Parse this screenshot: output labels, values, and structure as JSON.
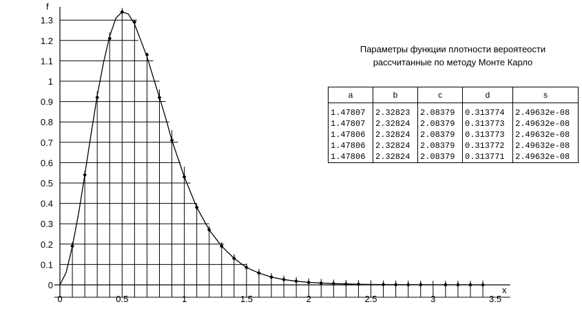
{
  "chart_data": {
    "type": "line",
    "title": "",
    "xlabel": "x",
    "ylabel": "f",
    "xlim": [
      0,
      3.5
    ],
    "ylim": [
      0,
      1.35
    ],
    "x_ticks": [
      "0",
      "0.5",
      "1",
      "1.5",
      "2",
      "2.5",
      "3",
      "3.5"
    ],
    "y_ticks": [
      "0",
      "0.1",
      "0.2",
      "0.3",
      "0.4",
      "0.5",
      "0.6",
      "0.7",
      "0.8",
      "0.9",
      "1",
      "1.1",
      "1.2",
      "1.3"
    ],
    "grid": "partial",
    "curve": {
      "x": [
        0,
        0.05,
        0.1,
        0.15,
        0.2,
        0.25,
        0.3,
        0.35,
        0.4,
        0.45,
        0.5,
        0.55,
        0.6,
        0.65,
        0.7,
        0.75,
        0.8,
        0.85,
        0.9,
        0.95,
        1.0,
        1.1,
        1.2,
        1.3,
        1.4,
        1.5,
        1.6,
        1.7,
        1.8,
        1.9,
        2.0,
        2.2,
        2.4,
        2.6,
        2.8,
        3.0,
        3.2,
        3.4
      ],
      "y": [
        0,
        0.06,
        0.19,
        0.35,
        0.54,
        0.74,
        0.93,
        1.09,
        1.22,
        1.31,
        1.34,
        1.33,
        1.28,
        1.2,
        1.12,
        1.02,
        0.92,
        0.82,
        0.71,
        0.62,
        0.53,
        0.38,
        0.27,
        0.19,
        0.13,
        0.085,
        0.058,
        0.038,
        0.026,
        0.018,
        0.012,
        0.006,
        0.003,
        0.0015,
        0.0008,
        0.0004,
        0.0002,
        0.0001
      ]
    },
    "points": {
      "x": [
        0.1,
        0.2,
        0.3,
        0.4,
        0.5,
        0.6,
        0.7,
        0.8,
        0.9,
        1.0,
        1.1,
        1.2,
        1.3,
        1.4,
        1.5,
        1.6,
        1.7,
        1.8,
        1.9,
        2.0,
        2.1,
        2.2,
        2.3,
        2.4,
        2.6,
        2.7,
        2.8,
        2.9,
        3.1,
        3.2,
        3.3,
        3.4
      ],
      "y": [
        0.19,
        0.54,
        0.92,
        1.21,
        1.34,
        1.29,
        1.13,
        0.92,
        0.71,
        0.53,
        0.38,
        0.27,
        0.19,
        0.13,
        0.085,
        0.058,
        0.038,
        0.026,
        0.018,
        0.012,
        0.008,
        0.006,
        0.004,
        0.003,
        0.0015,
        0.001,
        0.0008,
        0.0006,
        0.0004,
        0.0003,
        0.0002,
        0.0001
      ],
      "err_hi": [
        0.19,
        0.54,
        0.92,
        1.21,
        1.34,
        1.29,
        1.13,
        0.96,
        0.76,
        0.58,
        0.38,
        0.27,
        0.2,
        0.15,
        0.1,
        0.07,
        0.05,
        0.04,
        0.03,
        0.02,
        0.015,
        0.012,
        0.01,
        0.008,
        0.006,
        0.006,
        0.006,
        0.006,
        0.006,
        0.006,
        0.006,
        0.006
      ]
    },
    "grid_vlines": [
      0.1,
      0.2,
      0.3,
      0.4,
      0.5,
      0.6,
      0.7,
      0.8,
      0.9,
      1.0,
      1.1,
      1.2,
      1.3,
      1.4,
      1.5,
      1.6,
      1.7,
      1.8,
      1.9,
      2.0,
      2.1,
      2.2,
      2.3,
      2.4,
      2.5,
      2.6,
      2.7,
      2.8,
      2.9,
      3.0,
      3.1,
      3.2,
      3.3,
      3.4
    ],
    "grid_hlines": [
      {
        "y": 1.3,
        "x_end": 0.62
      },
      {
        "y": 1.2,
        "x_end": 0.63
      },
      {
        "y": 1.1,
        "x_end": 0.75
      },
      {
        "y": 1.0,
        "x_end": 0.8
      },
      {
        "y": 0.9,
        "x_end": 0.85
      },
      {
        "y": 0.8,
        "x_end": 0.88
      },
      {
        "y": 0.7,
        "x_end": 0.95
      },
      {
        "y": 0.6,
        "x_end": 0.97
      },
      {
        "y": 0.5,
        "x_end": 1.05
      },
      {
        "y": 0.4,
        "x_end": 1.1
      },
      {
        "y": 0.3,
        "x_end": 1.2
      },
      {
        "y": 0.2,
        "x_end": 1.32
      },
      {
        "y": 0.1,
        "x_end": 1.5
      }
    ]
  },
  "caption": {
    "line1": "Параметры  функции плотности вероятеости",
    "line2": "рассчитанные  по  методу  Монте Карло"
  },
  "table": {
    "headers": [
      "a",
      "b",
      "c",
      "d",
      "s"
    ],
    "rows": [
      [
        "1.47807",
        "2.32823",
        "2.08379",
        "0.313774",
        "2.49632e-08"
      ],
      [
        "1.47807",
        "2.32824",
        "2.08379",
        "0.313773",
        "2.49632e-08"
      ],
      [
        "1.47806",
        "2.32824",
        "2.08379",
        "0.313773",
        "2.49632e-08"
      ],
      [
        "1.47806",
        "2.32824",
        "2.08379",
        "0.313772",
        "2.49632e-08"
      ],
      [
        "1.47806",
        "2.32824",
        "2.08379",
        "0.313771",
        "2.49632e-08"
      ]
    ]
  }
}
